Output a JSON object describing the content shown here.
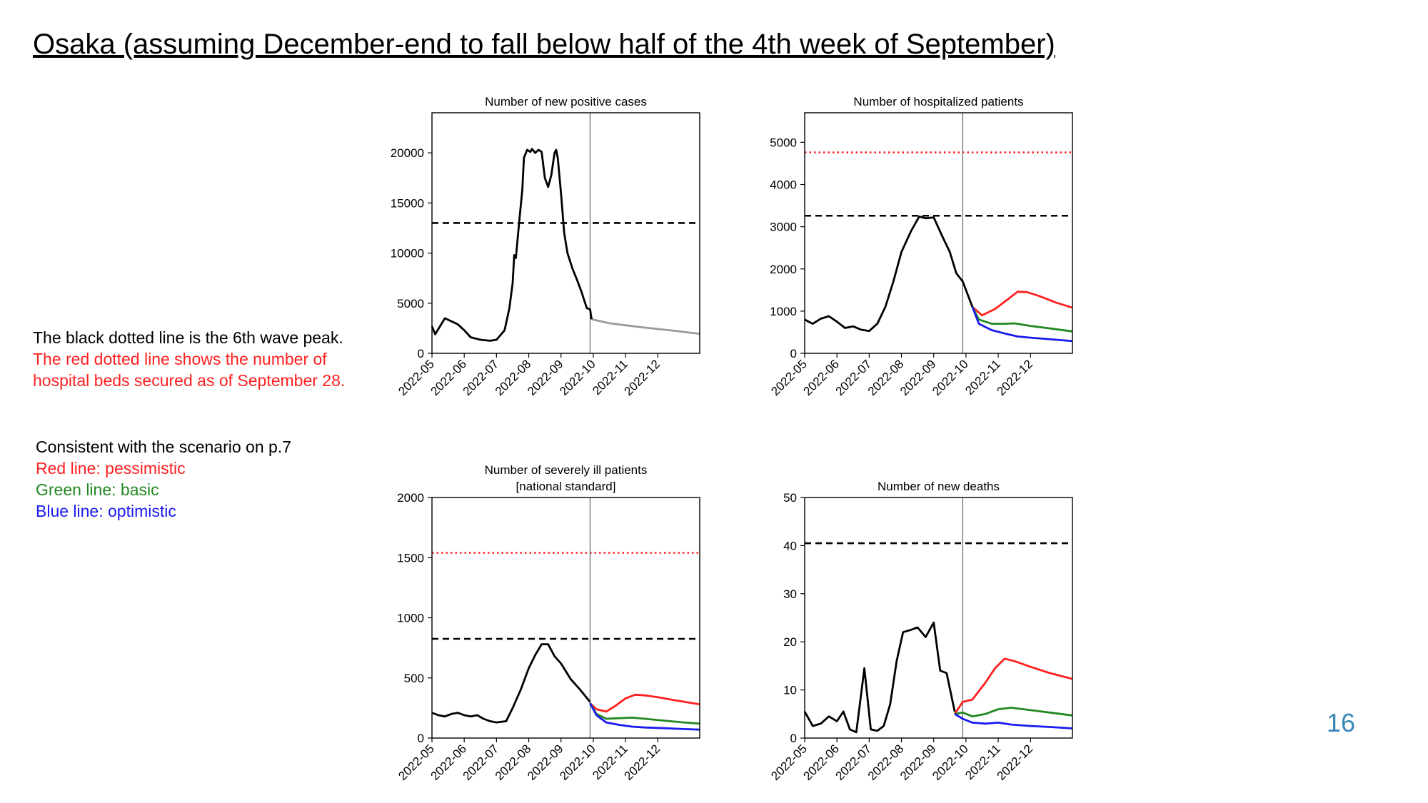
{
  "slide": {
    "title": "Osaka (assuming December-end to fall below half of the 4th week of September)",
    "page_number": "16"
  },
  "notes": {
    "black_line": "The black dotted line is the 6th wave peak.",
    "red_line_1": "The red dotted line shows the number of",
    "red_line_2": "hospital beds secured as of September 28.",
    "scenario": "Consistent with the scenario on p.7",
    "pessimistic": "Red line: pessimistic",
    "basic": "Green line: basic",
    "optimistic": "Blue line: optimistic"
  },
  "colors": {
    "actual": "#000000",
    "projection_gray": "#999999",
    "pessimistic": "#ff2020",
    "basic": "#228822",
    "optimistic": "#1a1aee",
    "beds_line": "#ff2020",
    "peak_line": "#000000",
    "page_number": "#3a86b8"
  },
  "chart_data": [
    {
      "type": "line",
      "title": [
        "Number of new positive cases"
      ],
      "xlabel": "",
      "ylabel": "",
      "xlim": [
        0,
        8.3
      ],
      "ylim": [
        0,
        24000
      ],
      "yticks": [
        0,
        5000,
        10000,
        15000,
        20000
      ],
      "xtick_labels": [
        "2022-05",
        "2022-06",
        "2022-07",
        "2022-08",
        "2022-09",
        "2022-10",
        "2022-11",
        "2022-12"
      ],
      "today_x": 4.9,
      "peak_line": 13000,
      "beds_line": null,
      "actual": [
        [
          0,
          2700
        ],
        [
          0.1,
          1900
        ],
        [
          0.25,
          2700
        ],
        [
          0.4,
          3500
        ],
        [
          0.6,
          3200
        ],
        [
          0.8,
          2900
        ],
        [
          1.0,
          2300
        ],
        [
          1.2,
          1600
        ],
        [
          1.5,
          1350
        ],
        [
          1.8,
          1250
        ],
        [
          2.0,
          1350
        ],
        [
          2.25,
          2300
        ],
        [
          2.4,
          4500
        ],
        [
          2.5,
          7000
        ],
        [
          2.55,
          9800
        ],
        [
          2.6,
          9500
        ],
        [
          2.7,
          13000
        ],
        [
          2.8,
          16300
        ],
        [
          2.85,
          19500
        ],
        [
          2.95,
          20300
        ],
        [
          3.05,
          20100
        ],
        [
          3.1,
          20400
        ],
        [
          3.2,
          20000
        ],
        [
          3.3,
          20300
        ],
        [
          3.4,
          20100
        ],
        [
          3.5,
          17500
        ],
        [
          3.6,
          16600
        ],
        [
          3.7,
          17800
        ],
        [
          3.8,
          20000
        ],
        [
          3.85,
          20300
        ],
        [
          3.9,
          19500
        ],
        [
          4.0,
          16000
        ],
        [
          4.1,
          12000
        ],
        [
          4.2,
          10000
        ],
        [
          4.35,
          8500
        ],
        [
          4.5,
          7300
        ],
        [
          4.65,
          6000
        ],
        [
          4.7,
          5500
        ],
        [
          4.8,
          4500
        ],
        [
          4.9,
          4400
        ],
        [
          4.95,
          3400
        ]
      ],
      "series": [
        {
          "name": "projection",
          "color_key": "projection_gray",
          "points": [
            [
              4.95,
              3400
            ],
            [
              5.5,
              3000
            ],
            [
              6.5,
              2600
            ],
            [
              7.5,
              2250
            ],
            [
              8.3,
              1950
            ]
          ]
        }
      ]
    },
    {
      "type": "line",
      "title": [
        "Number of hospitalized patients"
      ],
      "xlabel": "",
      "ylabel": "",
      "xlim": [
        0,
        8.3
      ],
      "ylim": [
        0,
        5700
      ],
      "yticks": [
        0,
        1000,
        2000,
        3000,
        4000,
        5000
      ],
      "xtick_labels": [
        "2022-05",
        "2022-06",
        "2022-07",
        "2022-08",
        "2022-09",
        "2022-10",
        "2022-11",
        "2022-12"
      ],
      "today_x": 4.9,
      "peak_line": 3260,
      "beds_line": 4760,
      "actual": [
        [
          0,
          800
        ],
        [
          0.25,
          700
        ],
        [
          0.5,
          820
        ],
        [
          0.75,
          880
        ],
        [
          1.0,
          750
        ],
        [
          1.25,
          600
        ],
        [
          1.5,
          640
        ],
        [
          1.75,
          560
        ],
        [
          2.0,
          530
        ],
        [
          2.25,
          700
        ],
        [
          2.5,
          1100
        ],
        [
          2.75,
          1700
        ],
        [
          3.0,
          2400
        ],
        [
          3.3,
          2900
        ],
        [
          3.55,
          3240
        ],
        [
          3.75,
          3200
        ],
        [
          4.0,
          3220
        ],
        [
          4.25,
          2800
        ],
        [
          4.5,
          2400
        ],
        [
          4.7,
          1900
        ],
        [
          4.9,
          1700
        ],
        [
          5.2,
          1100
        ]
      ],
      "series": [
        {
          "name": "pessimistic",
          "color_key": "pessimistic",
          "points": [
            [
              5.2,
              1100
            ],
            [
              5.5,
              900
            ],
            [
              5.9,
              1050
            ],
            [
              6.3,
              1280
            ],
            [
              6.6,
              1460
            ],
            [
              6.9,
              1450
            ],
            [
              7.3,
              1350
            ],
            [
              7.8,
              1200
            ],
            [
              8.3,
              1080
            ]
          ]
        },
        {
          "name": "basic",
          "color_key": "basic",
          "points": [
            [
              5.2,
              1100
            ],
            [
              5.4,
              800
            ],
            [
              5.8,
              700
            ],
            [
              6.2,
              700
            ],
            [
              6.5,
              710
            ],
            [
              7.0,
              650
            ],
            [
              7.5,
              600
            ],
            [
              8.3,
              520
            ]
          ]
        },
        {
          "name": "optimistic",
          "color_key": "optimistic",
          "points": [
            [
              5.2,
              1100
            ],
            [
              5.4,
              700
            ],
            [
              5.8,
              550
            ],
            [
              6.2,
              470
            ],
            [
              6.6,
              400
            ],
            [
              7.0,
              370
            ],
            [
              7.5,
              340
            ],
            [
              8.3,
              290
            ]
          ]
        }
      ]
    },
    {
      "type": "line",
      "title": [
        "Number of severely ill patients",
        "[national standard]"
      ],
      "xlabel": "",
      "ylabel": "",
      "xlim": [
        0,
        8.3
      ],
      "ylim": [
        0,
        2000
      ],
      "yticks": [
        0,
        500,
        1000,
        1500,
        2000
      ],
      "xtick_labels": [
        "2022-05",
        "2022-06",
        "2022-07",
        "2022-08",
        "2022-09",
        "2022-10",
        "2022-11",
        "2022-12"
      ],
      "today_x": 4.9,
      "peak_line": 825,
      "beds_line": 1540,
      "actual": [
        [
          0,
          210
        ],
        [
          0.2,
          190
        ],
        [
          0.4,
          180
        ],
        [
          0.6,
          200
        ],
        [
          0.8,
          210
        ],
        [
          1.0,
          190
        ],
        [
          1.2,
          180
        ],
        [
          1.4,
          190
        ],
        [
          1.6,
          160
        ],
        [
          1.8,
          140
        ],
        [
          2.0,
          130
        ],
        [
          2.3,
          140
        ],
        [
          2.5,
          250
        ],
        [
          2.75,
          400
        ],
        [
          3.0,
          580
        ],
        [
          3.2,
          690
        ],
        [
          3.4,
          780
        ],
        [
          3.6,
          780
        ],
        [
          3.8,
          680
        ],
        [
          4.0,
          620
        ],
        [
          4.3,
          490
        ],
        [
          4.6,
          400
        ],
        [
          4.9,
          300
        ]
      ],
      "series": [
        {
          "name": "pessimistic",
          "color_key": "pessimistic",
          "points": [
            [
              4.9,
              290
            ],
            [
              5.1,
              240
            ],
            [
              5.4,
              220
            ],
            [
              5.7,
              270
            ],
            [
              6.0,
              330
            ],
            [
              6.3,
              360
            ],
            [
              6.6,
              355
            ],
            [
              7.0,
              340
            ],
            [
              7.5,
              315
            ],
            [
              8.3,
              280
            ]
          ]
        },
        {
          "name": "basic",
          "color_key": "basic",
          "points": [
            [
              4.9,
              290
            ],
            [
              5.1,
              200
            ],
            [
              5.4,
              160
            ],
            [
              5.8,
              165
            ],
            [
              6.2,
              170
            ],
            [
              6.6,
              160
            ],
            [
              7.2,
              145
            ],
            [
              7.8,
              130
            ],
            [
              8.3,
              120
            ]
          ]
        },
        {
          "name": "optimistic",
          "color_key": "optimistic",
          "points": [
            [
              4.9,
              290
            ],
            [
              5.1,
              190
            ],
            [
              5.4,
              130
            ],
            [
              5.8,
              110
            ],
            [
              6.2,
              95
            ],
            [
              6.6,
              88
            ],
            [
              7.2,
              82
            ],
            [
              7.8,
              75
            ],
            [
              8.3,
              70
            ]
          ]
        }
      ]
    },
    {
      "type": "line",
      "title": [
        "Number of new deaths"
      ],
      "xlabel": "",
      "ylabel": "",
      "xlim": [
        0,
        8.3
      ],
      "ylim": [
        0,
        50
      ],
      "yticks": [
        0,
        10,
        20,
        30,
        40,
        50
      ],
      "xtick_labels": [
        "2022-05",
        "2022-06",
        "2022-07",
        "2022-08",
        "2022-09",
        "2022-10",
        "2022-11",
        "2022-12"
      ],
      "today_x": 4.9,
      "peak_line": 40.5,
      "beds_line": null,
      "actual": [
        [
          0,
          5.5
        ],
        [
          0.25,
          2.5
        ],
        [
          0.5,
          3
        ],
        [
          0.75,
          4.5
        ],
        [
          1.0,
          3.5
        ],
        [
          1.2,
          5.5
        ],
        [
          1.4,
          1.8
        ],
        [
          1.6,
          1.2
        ],
        [
          1.85,
          14.5
        ],
        [
          2.05,
          1.8
        ],
        [
          2.25,
          1.5
        ],
        [
          2.45,
          2.5
        ],
        [
          2.65,
          7
        ],
        [
          2.85,
          16
        ],
        [
          3.05,
          22
        ],
        [
          3.3,
          22.5
        ],
        [
          3.5,
          23
        ],
        [
          3.75,
          21
        ],
        [
          4.0,
          24
        ],
        [
          4.2,
          14
        ],
        [
          4.4,
          13.5
        ],
        [
          4.65,
          5.5
        ]
      ],
      "series": [
        {
          "name": "pessimistic",
          "color_key": "pessimistic",
          "points": [
            [
              4.65,
              5
            ],
            [
              4.9,
              7.5
            ],
            [
              5.2,
              8
            ],
            [
              5.6,
              11.5
            ],
            [
              5.9,
              14.5
            ],
            [
              6.2,
              16.5
            ],
            [
              6.5,
              16
            ],
            [
              7.0,
              14.8
            ],
            [
              7.6,
              13.5
            ],
            [
              8.3,
              12.3
            ]
          ]
        },
        {
          "name": "basic",
          "color_key": "basic",
          "points": [
            [
              4.65,
              5
            ],
            [
              4.9,
              5.3
            ],
            [
              5.2,
              4.5
            ],
            [
              5.6,
              5
            ],
            [
              6.0,
              6
            ],
            [
              6.4,
              6.3
            ],
            [
              7.0,
              5.8
            ],
            [
              7.6,
              5.3
            ],
            [
              8.3,
              4.7
            ]
          ]
        },
        {
          "name": "optimistic",
          "color_key": "optimistic",
          "points": [
            [
              4.65,
              5
            ],
            [
              4.9,
              4
            ],
            [
              5.2,
              3.2
            ],
            [
              5.6,
              3
            ],
            [
              6.0,
              3.2
            ],
            [
              6.4,
              2.8
            ],
            [
              7.0,
              2.5
            ],
            [
              7.6,
              2.3
            ],
            [
              8.3,
              2
            ]
          ]
        }
      ]
    }
  ]
}
